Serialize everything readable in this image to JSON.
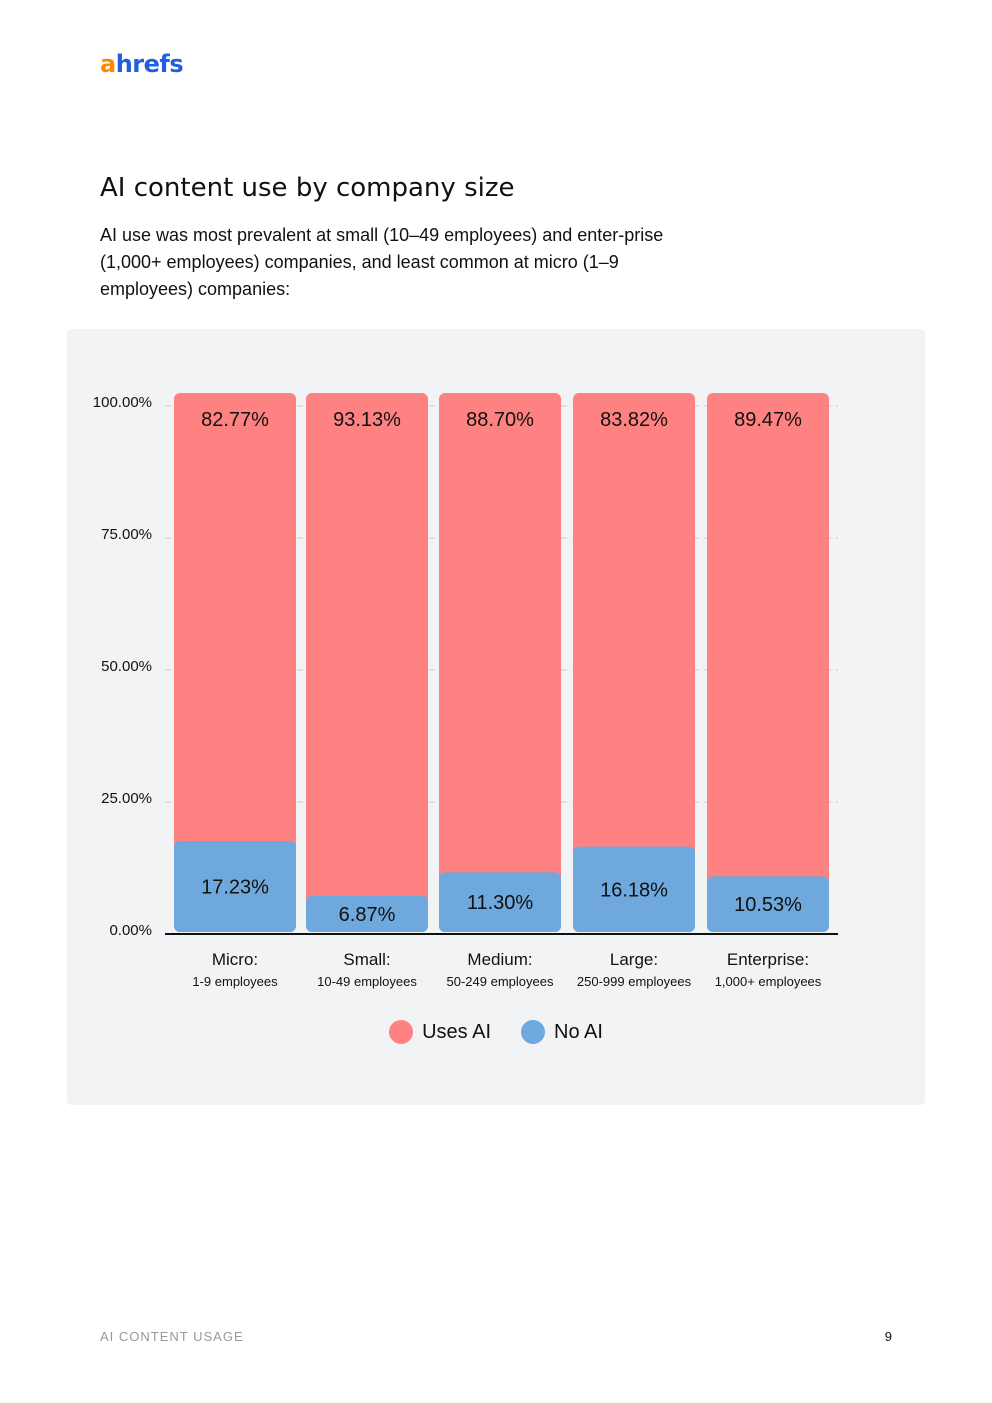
{
  "header": {
    "logo_a": "a",
    "logo_rest": "hrefs"
  },
  "title": "AI content use by company size",
  "subtitle": "AI use was most prevalent at small (10–49 employees) and enter-prise (1,000+ employees) companies, and least common at micro (1–9 employees) companies:",
  "legend": {
    "uses_ai": "Uses AI",
    "no_ai": "No AI"
  },
  "colors": {
    "uses_ai": "#ff8282",
    "no_ai": "#6fa8dc",
    "panel": "#f2f3f5"
  },
  "chart_data": {
    "type": "bar",
    "stacked": true,
    "categories": [
      "Micro:",
      "Small:",
      "Medium:",
      "Large:",
      "Enterprise:"
    ],
    "category_sublabels": [
      "1-9 employees",
      "10-49 employees",
      "50-249 employees",
      "250-999 employees",
      "1,000+ employees"
    ],
    "series": [
      {
        "name": "No AI",
        "values": [
          17.23,
          6.87,
          11.3,
          16.18,
          10.53
        ],
        "labels": [
          "17.23%",
          "6.87%",
          "11.30%",
          "16.18%",
          "10.53%"
        ]
      },
      {
        "name": "Uses AI",
        "values": [
          82.77,
          93.13,
          88.7,
          83.82,
          89.47
        ],
        "labels": [
          "82.77%",
          "93.13%",
          "88.70%",
          "83.82%",
          "89.47%"
        ]
      }
    ],
    "yticks": [
      "0.00%",
      "25.00%",
      "50.00%",
      "75.00%",
      "100.00%"
    ],
    "ylim": [
      0,
      100
    ],
    "grid": true,
    "legend_position": "bottom"
  },
  "footer": {
    "section": "AI CONTENT USAGE",
    "page": "9"
  }
}
